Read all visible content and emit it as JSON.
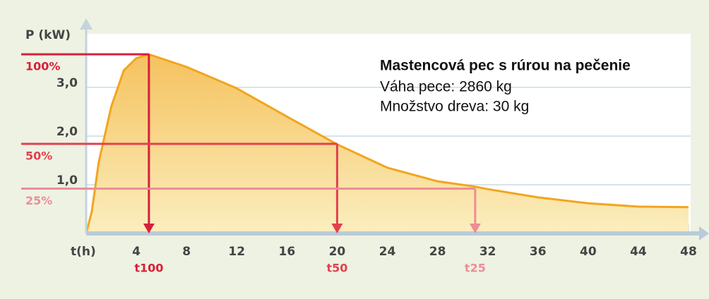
{
  "chart_data": {
    "type": "area",
    "y_label": "P (kW)",
    "x_label": "t(h)",
    "x": [
      0,
      0.45,
      1,
      2,
      3,
      4,
      5,
      8,
      12,
      16,
      20,
      24,
      28,
      31,
      32,
      36,
      40,
      44,
      48
    ],
    "values": [
      0,
      0.45,
      1.46,
      2.6,
      3.35,
      3.6,
      3.68,
      3.42,
      2.98,
      2.4,
      1.83,
      1.35,
      1.07,
      0.96,
      0.91,
      0.74,
      0.62,
      0.55,
      0.54
    ],
    "color": "#f2a51f",
    "xlim": [
      0,
      48
    ],
    "ylim": [
      0,
      4.1
    ],
    "xticks": [
      4,
      8,
      12,
      16,
      20,
      24,
      28,
      32,
      36,
      40,
      44,
      48
    ],
    "yticks": [
      {
        "value": 1,
        "label": "1,0"
      },
      {
        "value": 2,
        "label": "2,0"
      },
      {
        "value": 3,
        "label": "3,0"
      }
    ],
    "grid": true,
    "levels": [
      {
        "label": "100%",
        "value": 3.68,
        "t": 5,
        "t_label": "t100",
        "color": "#d81f3a"
      },
      {
        "label": "50%",
        "value": 1.84,
        "t": 20,
        "t_label": "t50",
        "color": "#e2404f"
      },
      {
        "label": "25%",
        "value": 0.92,
        "t": 31,
        "t_label": "t25",
        "color": "#ec8d98"
      }
    ],
    "annotation": {
      "title": "Mastencová pec s rúrou na pečenie",
      "lines": [
        "Váha pece: 2860 kg",
        "Množstvo dreva: 30 kg"
      ]
    }
  }
}
